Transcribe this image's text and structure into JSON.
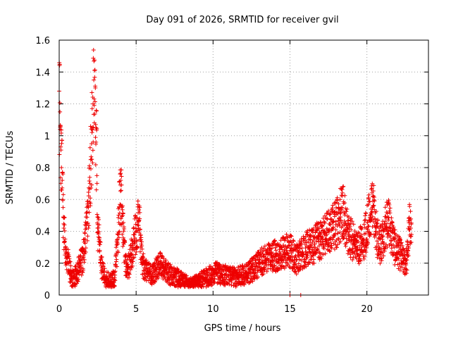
{
  "chart_data": {
    "type": "scatter",
    "title": "Day 091 of 2026, SRMTID for receiver gvil",
    "xlabel": "GPS time / hours",
    "ylabel": "SRMTID / TECUs",
    "xlim": [
      0,
      24
    ],
    "ylim": [
      0,
      1.6
    ],
    "xticks": [
      0,
      5,
      10,
      15,
      20
    ],
    "xtick_labels": [
      "0",
      "5",
      "10",
      "15",
      "20"
    ],
    "yticks": [
      0,
      0.2,
      0.4,
      0.6,
      0.8,
      1,
      1.2,
      1.4,
      1.6
    ],
    "ytick_labels": [
      "0",
      "0.2",
      "0.4",
      "0.6",
      "0.8",
      "1",
      "1.2",
      "1.4",
      "1.6"
    ],
    "grid": true,
    "marker": "plus",
    "color": "#ee0000",
    "series": [
      {
        "name": "SRMTID",
        "x": [
          0.0,
          0.05,
          0.1,
          0.15,
          0.2,
          0.25,
          0.3,
          0.4,
          0.5,
          0.6,
          0.7,
          0.8,
          0.9,
          1.0,
          1.1,
          1.2,
          1.3,
          1.4,
          1.5,
          1.6,
          1.7,
          1.8,
          1.9,
          2.0,
          2.05,
          2.1,
          2.15,
          2.2,
          2.25,
          2.3,
          2.35,
          2.4,
          2.45,
          2.5,
          2.6,
          2.7,
          2.8,
          2.9,
          3.0,
          3.2,
          3.4,
          3.6,
          3.8,
          3.9,
          4.0,
          4.1,
          4.2,
          4.3,
          4.4,
          4.5,
          4.6,
          4.7,
          4.8,
          4.9,
          5.0,
          5.1,
          5.2,
          5.3,
          5.4,
          5.6,
          5.8,
          6.0,
          6.3,
          6.6,
          7.0,
          7.4,
          7.8,
          8.2,
          8.6,
          9.0,
          9.4,
          9.8,
          10.2,
          10.6,
          11.0,
          11.4,
          11.8,
          12.2,
          12.6,
          13.0,
          13.4,
          13.8,
          14.2,
          14.6,
          15.0,
          15.4,
          15.8,
          16.2,
          16.6,
          17.0,
          17.4,
          17.8,
          18.2,
          18.4,
          18.6,
          18.8,
          19.0,
          19.4,
          19.8,
          20.0,
          20.2,
          20.4,
          20.6,
          20.8,
          21.0,
          21.2,
          21.4,
          21.8,
          22.2,
          22.4,
          22.6,
          22.8,
          22.85,
          22.9
        ],
        "y": [
          1.28,
          1.15,
          0.93,
          0.8,
          0.72,
          0.55,
          0.42,
          0.3,
          0.24,
          0.2,
          0.15,
          0.12,
          0.1,
          0.11,
          0.13,
          0.15,
          0.18,
          0.2,
          0.22,
          0.26,
          0.35,
          0.45,
          0.55,
          0.7,
          0.85,
          0.95,
          1.05,
          1.2,
          1.35,
          1.41,
          1.3,
          1.05,
          0.75,
          0.42,
          0.35,
          0.22,
          0.16,
          0.12,
          0.1,
          0.09,
          0.08,
          0.11,
          0.32,
          0.55,
          0.72,
          0.45,
          0.32,
          0.22,
          0.16,
          0.18,
          0.22,
          0.26,
          0.3,
          0.35,
          0.4,
          0.44,
          0.47,
          0.3,
          0.2,
          0.16,
          0.14,
          0.12,
          0.16,
          0.2,
          0.14,
          0.12,
          0.1,
          0.08,
          0.06,
          0.08,
          0.1,
          0.12,
          0.14,
          0.13,
          0.12,
          0.11,
          0.12,
          0.14,
          0.16,
          0.2,
          0.22,
          0.24,
          0.25,
          0.27,
          0.28,
          0.22,
          0.26,
          0.3,
          0.32,
          0.35,
          0.38,
          0.42,
          0.48,
          0.55,
          0.45,
          0.38,
          0.35,
          0.3,
          0.35,
          0.42,
          0.5,
          0.56,
          0.4,
          0.3,
          0.35,
          0.42,
          0.47,
          0.3,
          0.25,
          0.2,
          0.22,
          0.47,
          0.42,
          0.38
        ]
      }
    ],
    "stray_points": {
      "x": [
        15.0,
        15.7
      ],
      "y": [
        0.0,
        0.0
      ]
    }
  }
}
